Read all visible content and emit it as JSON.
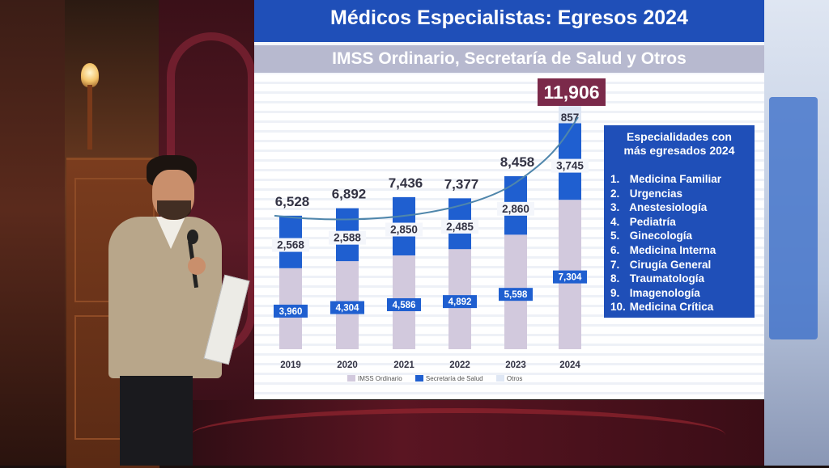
{
  "screen": {
    "title": "Médicos Especialistas: Egresos 2024",
    "subtitle": "IMSS Ordinario, Secretaría de Salud y Otros",
    "total_highlight": "11,906",
    "panel": {
      "title_line1": "Especialidades con",
      "title_line2": "más egresados 2024",
      "items": [
        {
          "n": "1.",
          "label": "Medicina Familiar"
        },
        {
          "n": "2.",
          "label": "Urgencias"
        },
        {
          "n": "3.",
          "label": "Anestesiología"
        },
        {
          "n": "4.",
          "label": "Pediatría"
        },
        {
          "n": "5.",
          "label": "Ginecología"
        },
        {
          "n": "6.",
          "label": "Medicina Interna"
        },
        {
          "n": "7.",
          "label": "Cirugía General"
        },
        {
          "n": "8.",
          "label": "Traumatología"
        },
        {
          "n": "9.",
          "label": "Imagenología"
        },
        {
          "n": "10.",
          "label": "Medicina Crítica"
        }
      ]
    }
  },
  "colors": {
    "header": "#1f4fb8",
    "imss": "#d2c9dd",
    "secretaria": "#1f5fd0",
    "otros": "#dfe7f4",
    "highlight": "#7b2a4a",
    "trend": "#4f86ab"
  },
  "chart_data": {
    "type": "bar",
    "stacked": true,
    "categories": [
      "2019",
      "2020",
      "2021",
      "2022",
      "2023",
      "2024"
    ],
    "series": [
      {
        "name": "IMSS Ordinario",
        "values": [
          3960,
          4304,
          4586,
          4892,
          5598,
          7304
        ],
        "labels": [
          "3,960",
          "4,304",
          "4,586",
          "4,892",
          "5,598",
          "7,304"
        ]
      },
      {
        "name": "Secretaría de Salud",
        "values": [
          2568,
          2588,
          2850,
          2485,
          2860,
          3745
        ],
        "labels": [
          "2,568",
          "2,588",
          "2,850",
          "2,485",
          "2,860",
          "3,745"
        ]
      },
      {
        "name": "Otros",
        "values": [
          0,
          0,
          0,
          0,
          0,
          857
        ],
        "labels": [
          "",
          "",
          "",
          "",
          "",
          "857"
        ]
      }
    ],
    "totals": [
      6528,
      6892,
      7436,
      7377,
      8458,
      11906
    ],
    "total_labels": [
      "6,528",
      "6,892",
      "7,436",
      "7,377",
      "8,458",
      "11,906"
    ],
    "trend_line": true,
    "legend_position": "bottom"
  }
}
